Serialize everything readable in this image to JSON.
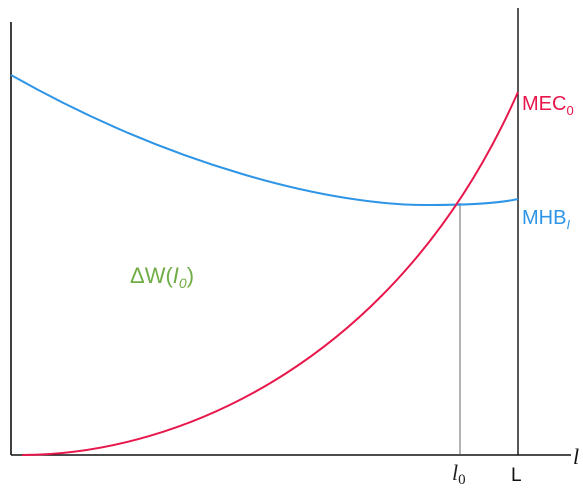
{
  "diagram": {
    "labels": {
      "mec_curve": "MEC",
      "mec_sub": "0",
      "mhb_curve": "MHB",
      "mhb_sub": "I",
      "area_delta": "ΔW(",
      "area_var": "I",
      "area_var_sub": "0",
      "area_close": ")",
      "x_tick_l0": "l",
      "x_tick_l0_sub": "0",
      "x_tick_L": "L",
      "x_axis_end": "l"
    },
    "colors": {
      "mec": "#e8174b",
      "mhb": "#2f95e6",
      "area_label": "#71ad47",
      "axes": "#111111",
      "drop_line": "#555555"
    }
  }
}
